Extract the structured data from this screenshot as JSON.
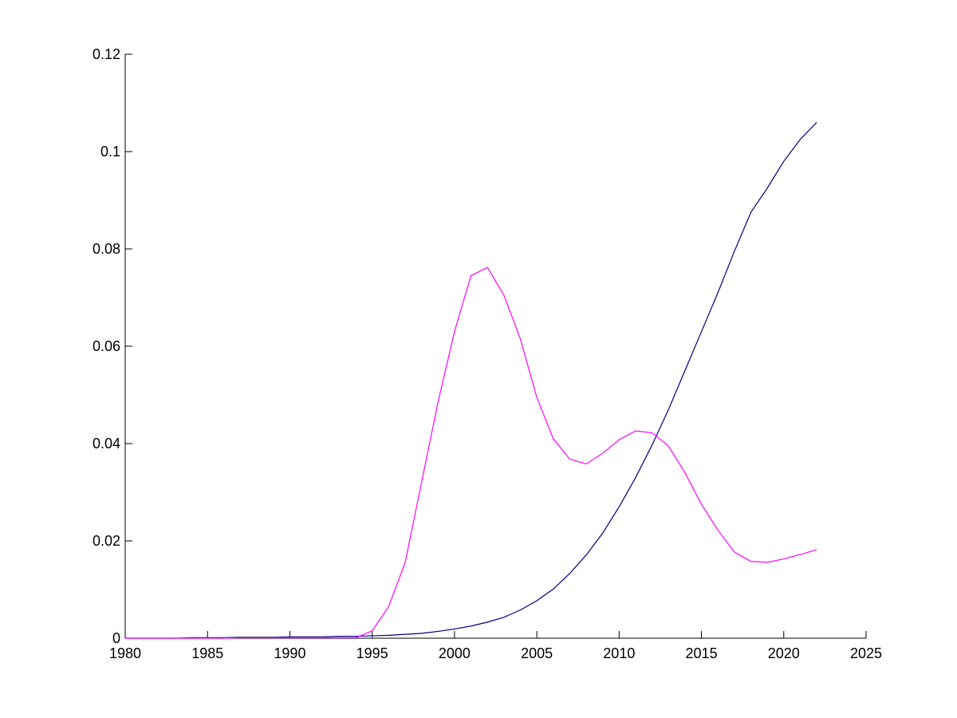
{
  "chart_data": {
    "type": "line",
    "x": [
      1980,
      1981,
      1982,
      1983,
      1984,
      1985,
      1986,
      1987,
      1988,
      1989,
      1990,
      1991,
      1992,
      1993,
      1994,
      1995,
      1996,
      1997,
      1998,
      1999,
      2000,
      2001,
      2002,
      2003,
      2004,
      2005,
      2006,
      2007,
      2008,
      2009,
      2010,
      2011,
      2012,
      2013,
      2014,
      2015,
      2016,
      2017,
      2018,
      2019,
      2020,
      2021,
      2022
    ],
    "series": [
      {
        "color": "#00007f",
        "values": [
          0,
          0,
          0,
          0,
          0.0001,
          0.0001,
          0.0001,
          0.0002,
          0.0002,
          0.0002,
          0.0003,
          0.0003,
          0.0003,
          0.0004,
          0.0004,
          0.0005,
          0.0006,
          0.0008,
          0.001,
          0.0014,
          0.0019,
          0.0025,
          0.0033,
          0.0043,
          0.0058,
          0.0077,
          0.0101,
          0.0133,
          0.0171,
          0.0216,
          0.027,
          0.033,
          0.0397,
          0.047,
          0.055,
          0.063,
          0.071,
          0.0795,
          0.0875,
          0.0925,
          0.098,
          0.1025,
          0.106
        ]
      },
      {
        "color": "#ff00ff",
        "values": [
          0,
          0,
          0,
          0,
          0,
          0,
          0,
          0.0001,
          0.0001,
          0.0001,
          0.0001,
          0.0001,
          0.0001,
          0.0001,
          0.0001,
          0.0015,
          0.0065,
          0.0155,
          0.032,
          0.0485,
          0.063,
          0.0745,
          0.0762,
          0.0705,
          0.0615,
          0.0495,
          0.041,
          0.0368,
          0.0358,
          0.038,
          0.0408,
          0.0426,
          0.0422,
          0.0395,
          0.034,
          0.0275,
          0.0222,
          0.0177,
          0.0158,
          0.0156,
          0.0163,
          0.0172,
          0.0182
        ]
      }
    ],
    "xlim": [
      1980,
      2025
    ],
    "xticks": [
      1980,
      1985,
      1990,
      1995,
      2000,
      2005,
      2010,
      2015,
      2020,
      2025
    ],
    "ylim": [
      0,
      0.12
    ],
    "yticks": [
      0,
      0.02,
      0.04,
      0.06,
      0.08,
      0.1,
      0.12
    ],
    "grid": false
  }
}
